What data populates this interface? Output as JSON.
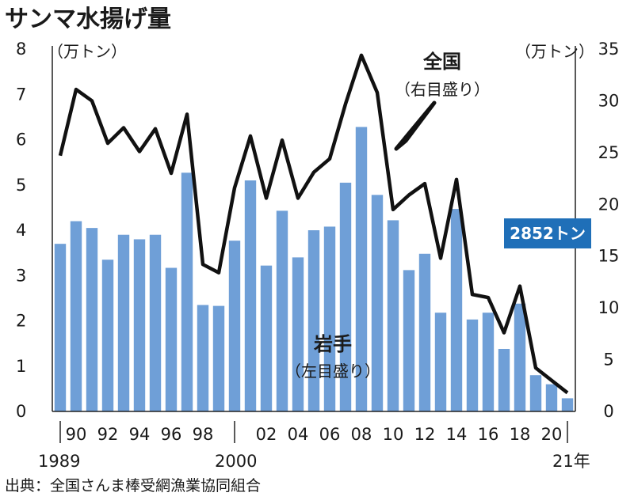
{
  "title": "サンマ水揚げ量",
  "source": "出典：全国さんま棒受網漁業協同組合",
  "colors": {
    "bar": "#6f9fd7",
    "line": "#111111",
    "callout_bg": "#1f6fb8",
    "callout_text": "#ffffff"
  },
  "left_axis_unit": "（万トン）",
  "right_axis_unit": "（万トン）",
  "labels": {
    "national_name": "全国",
    "national_sub": "（右目盛り）",
    "iwate_name": "岩手",
    "iwate_sub": "（左目盛り）",
    "callout": "2852トン"
  },
  "x_extra_labels": {
    "start_year": "1989",
    "mid_year": "2000",
    "end_year": "21年"
  },
  "chart_data": {
    "type": "bar",
    "title": "サンマ水揚げ量",
    "categories": [
      "1989",
      "1990",
      "1991",
      "1992",
      "1993",
      "1994",
      "1995",
      "1996",
      "1997",
      "1998",
      "1999",
      "2000",
      "2001",
      "2002",
      "2003",
      "2004",
      "2005",
      "2006",
      "2007",
      "2008",
      "2009",
      "2010",
      "2011",
      "2012",
      "2013",
      "2014",
      "2015",
      "2016",
      "2017",
      "2018",
      "2019",
      "2020",
      "2021"
    ],
    "x_tick_labels": [
      "90",
      "92",
      "94",
      "96",
      "98",
      "02",
      "04",
      "06",
      "08",
      "10",
      "12",
      "14",
      "16",
      "18",
      "20"
    ],
    "x_tick_years": [
      "1990",
      "1992",
      "1994",
      "1996",
      "1998",
      "2002",
      "2004",
      "2006",
      "2008",
      "2010",
      "2012",
      "2014",
      "2016",
      "2018",
      "2020"
    ],
    "y_left_ticks": [
      "0",
      "1",
      "2",
      "3",
      "4",
      "5",
      "6",
      "7",
      "8"
    ],
    "y_right_ticks": [
      "0",
      "5",
      "10",
      "15",
      "20",
      "25",
      "30",
      "35"
    ],
    "ylim_left": [
      0,
      8
    ],
    "ylim_right": [
      0,
      35
    ],
    "grid": false,
    "series": [
      {
        "name": "岩手",
        "type": "bar",
        "axis": "left",
        "values": [
          3.7,
          4.2,
          4.05,
          3.35,
          3.9,
          3.8,
          3.9,
          3.17,
          5.27,
          2.35,
          2.33,
          3.77,
          5.1,
          3.22,
          4.43,
          3.4,
          4.0,
          4.08,
          5.05,
          6.28,
          4.78,
          4.22,
          3.12,
          3.48,
          2.18,
          4.47,
          2.03,
          2.18,
          1.38,
          2.38,
          0.8,
          0.6,
          0.29
        ]
      },
      {
        "name": "全国",
        "type": "line",
        "axis": "right",
        "values": [
          24.7,
          31.1,
          30.0,
          25.9,
          27.4,
          25.1,
          27.3,
          23.0,
          28.7,
          14.2,
          13.4,
          21.6,
          26.6,
          20.6,
          26.2,
          20.6,
          23.1,
          24.4,
          29.7,
          34.4,
          30.8,
          19.5,
          20.9,
          22.0,
          14.8,
          22.4,
          11.3,
          11.0,
          7.6,
          12.1,
          4.2,
          3.0,
          1.8
        ]
      }
    ]
  }
}
